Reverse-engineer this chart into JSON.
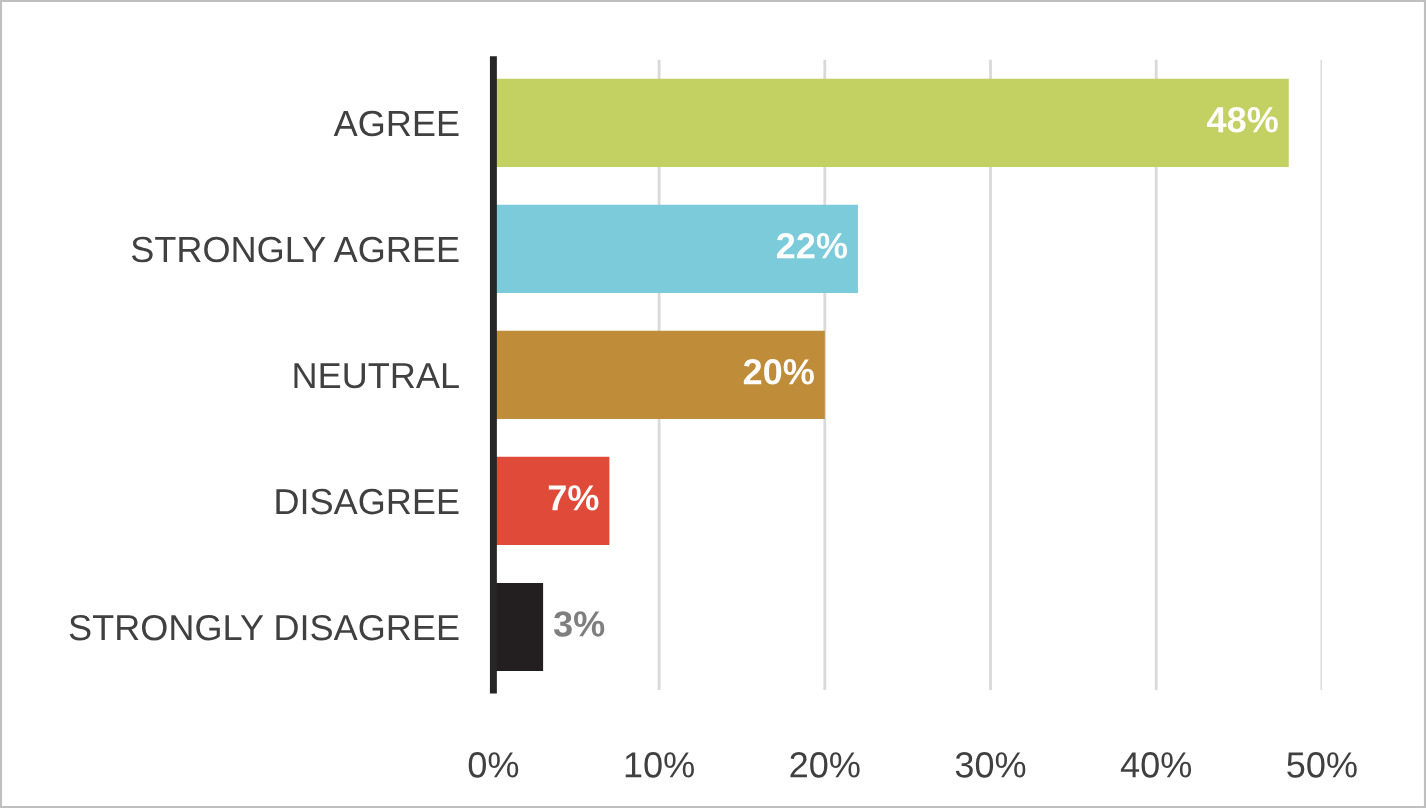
{
  "chart_data": {
    "type": "bar",
    "orientation": "horizontal",
    "categories": [
      "AGREE",
      "STRONGLY AGREE",
      "NEUTRAL",
      "DISAGREE",
      "STRONGLY DISAGREE"
    ],
    "values": [
      48,
      22,
      20,
      7,
      3
    ],
    "colors": [
      "#c3d062",
      "#7ccbdb",
      "#bf8c3a",
      "#e04a38",
      "#231f20"
    ],
    "value_labels": [
      "48%",
      "22%",
      "20%",
      "7%",
      "3%"
    ],
    "xlim": [
      0,
      50
    ],
    "xticks": [
      {
        "value": 0,
        "label": "0%"
      },
      {
        "value": 10,
        "label": "10%"
      },
      {
        "value": 20,
        "label": "20%"
      },
      {
        "value": 30,
        "label": "30%"
      },
      {
        "value": 40,
        "label": "40%"
      },
      {
        "value": 50,
        "label": "50%"
      }
    ],
    "grid": "x",
    "legend": false
  }
}
